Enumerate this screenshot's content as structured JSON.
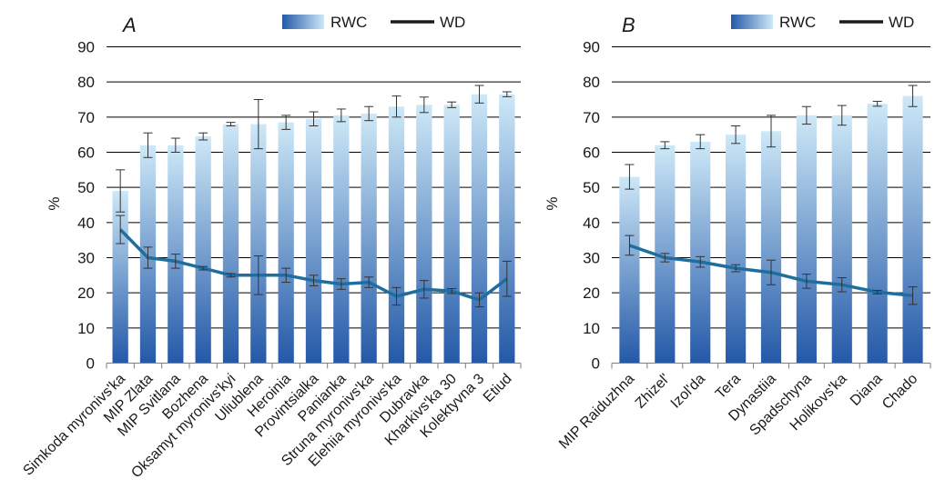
{
  "chart_data": [
    {
      "type": "bar",
      "panel_label": "A",
      "ylabel": "%",
      "ylim": [
        0,
        90
      ],
      "yticks": [
        0,
        10,
        20,
        30,
        40,
        50,
        60,
        70,
        80,
        90
      ],
      "grid": true,
      "legend": {
        "placement": "top-right",
        "entries": [
          "RWC",
          "WD"
        ]
      },
      "categories": [
        "Simkoda myronivs'ka",
        "MIP Zlata",
        "MIP Svitlana",
        "Bozhena",
        "Oksamyt myronivs'kyi",
        "Uliublena",
        "Heroinia",
        "Provintsialka",
        "Panianka",
        "Struna myronivs'ka",
        "Elehiia myronivs'ka",
        "Dubravka",
        "Kharkivs'ka 30",
        "Kolektyvna 3",
        "Etiud"
      ],
      "series": [
        {
          "name": "RWC",
          "type": "bar",
          "values": [
            49,
            62,
            62,
            64.5,
            68,
            68,
            68.5,
            69.5,
            70.5,
            71,
            73,
            73.5,
            73.5,
            76.5,
            76.5
          ],
          "errors": [
            6,
            3.5,
            2,
            1,
            0.5,
            7,
            2,
            2,
            1.8,
            2,
            3,
            2.2,
            0.8,
            2.5,
            0.7
          ]
        },
        {
          "name": "WD",
          "type": "line",
          "values": [
            38,
            30,
            29,
            27,
            25,
            25,
            25,
            23.5,
            22.5,
            23,
            19,
            21,
            20.5,
            18,
            24
          ],
          "errors": [
            4,
            3,
            2,
            0.5,
            0.5,
            5.5,
            2,
            1.5,
            1.5,
            1.5,
            2.5,
            2.5,
            0.7,
            2,
            5
          ]
        }
      ]
    },
    {
      "type": "bar",
      "panel_label": "B",
      "ylabel": "%",
      "ylim": [
        0,
        90
      ],
      "yticks": [
        0,
        10,
        20,
        30,
        40,
        50,
        60,
        70,
        80,
        90
      ],
      "grid": true,
      "legend": {
        "placement": "top-right",
        "entries": [
          "RWC",
          "WD"
        ]
      },
      "categories": [
        "MIP Raiduzhna",
        "Zhizel'",
        "Izol'da",
        "Tera",
        "Dynastiia",
        "Spadschyna",
        "Holikovs'ka",
        "Diana",
        "Chado"
      ],
      "series": [
        {
          "name": "RWC",
          "type": "bar",
          "values": [
            53,
            62,
            63,
            65,
            66,
            70.5,
            70.5,
            73.8,
            76
          ],
          "errors": [
            3.5,
            1,
            2,
            2.5,
            4.5,
            2.5,
            2.8,
            0.7,
            3
          ]
        },
        {
          "name": "WD",
          "type": "line",
          "values": [
            33.5,
            30,
            28.8,
            27,
            25.8,
            23.3,
            22.3,
            20.2,
            19.2
          ],
          "errors": [
            2.8,
            1.2,
            1.5,
            1,
            3.5,
            2,
            2,
            0.5,
            2.5
          ]
        }
      ]
    }
  ],
  "colors": {
    "bar_top": "#cde8f7",
    "bar_bottom": "#2459a8",
    "line": "#1e6e9f",
    "error_bar": "#333333",
    "grid": "#000000",
    "axis": "#7f7f7f",
    "legend_line": "#1a1a1a"
  }
}
